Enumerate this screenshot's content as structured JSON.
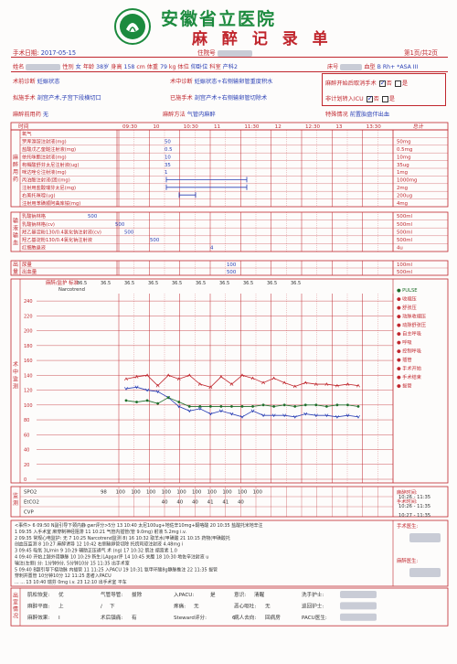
{
  "header": {
    "hospital": "安徽省立医院",
    "title": "麻 醉 记 录 单",
    "logo_text": "安徽省立医院",
    "logo_year": "1898",
    "surgery_date_label": "手术日期:",
    "surgery_date": "2017-05-15",
    "admission_label": "住院号",
    "page_info": "第1页/共2页"
  },
  "patient": {
    "name_label": "姓名",
    "sex_label": "性别",
    "sex": "女",
    "age_label": "年龄",
    "age": "38岁",
    "height_label": "身高",
    "height": "158",
    "height_unit": "cm",
    "weight_label": "体重",
    "weight": "79",
    "weight_unit": "kg",
    "position_label": "体位",
    "position": "仰卧位",
    "dept_label": "科室",
    "dept": "产科2",
    "bed_label": "床号",
    "blood_label": "血型",
    "blood": "B Rh+ *ASA III",
    "preop_dx_label": "术前诊断",
    "preop_dx": "妊娠状态",
    "intraop_dx_label": "术中诊断",
    "intraop_dx": "妊娠状态+右侧输卵管重度积水",
    "planned_op_label": "拟施手术",
    "planned_op": "剖宫产术,子宫下段横切口",
    "done_op_label": "已施手术",
    "done_op": "剖宫产术+右侧输卵管切除术",
    "premed_label": "麻醉前用药",
    "premed": "无",
    "method_label": "麻醉方法",
    "method": "气管内麻醉",
    "cancel_label": "麻醉开始后取消手术",
    "no_label": "否",
    "yes_label": "是",
    "icu_label": "非计划转入ICU",
    "special_label": "特殊情况",
    "special": "前置胎盘伴出血"
  },
  "timeline": {
    "label": "时间",
    "ticks": [
      "09:30",
      "10",
      "10:30",
      "11",
      "11:30",
      "12",
      "12:30",
      "13",
      "13:30"
    ],
    "total_label": "总计"
  },
  "drugs": {
    "side_label": "麻醉用药",
    "rows": [
      {
        "name": "氧气",
        "val": "",
        "total": ""
      },
      {
        "name": "罗库溴铵注射液(mg)",
        "val": "50",
        "total": "50mg"
      },
      {
        "name": "盐酸戊乙奎醚注射液(mg)",
        "val": "0.5",
        "total": "0.5mg"
      },
      {
        "name": "依托咪酯注射液(mg)",
        "val": "10",
        "total": "10mg"
      },
      {
        "name": "枸橼酸舒芬太尼注射液(ug)",
        "val": "35",
        "total": "35ug"
      },
      {
        "name": "咪达唑仑注射液(mg)",
        "val": "1",
        "total": "1mg"
      },
      {
        "name": "丙泊酚注射液(团)(mg)",
        "val": "",
        "total": "1000mg"
      },
      {
        "name": "注射用盐酸瑞芬太尼(mg)",
        "val": "",
        "total": "2mg"
      },
      {
        "name": "右美托咪啶(ug)",
        "val": "",
        "total": "200ug"
      },
      {
        "name": "注射用苯磺顺阿曲库铵(mg)",
        "val": "",
        "total": "4mg"
      }
    ]
  },
  "fluids": {
    "side_label": "输液输血",
    "rows": [
      {
        "name": "乳酸钠林格",
        "val": "500",
        "total": "500ml"
      },
      {
        "name": "乳酸钠林格(cv)",
        "val": "500",
        "total": "500ml"
      },
      {
        "name": "羟乙基淀粉130/0.4氯化钠注射液(cv)",
        "val": "500",
        "total": "500ml"
      },
      {
        "name": "羟乙基淀粉130/0.4氯化钠注射液",
        "val": "500",
        "total": "500ml"
      },
      {
        "name": "红细胞悬液",
        "val": "4",
        "total": "4u"
      }
    ]
  },
  "output": {
    "side_label": "出量",
    "rows": [
      {
        "name": "尿量",
        "val": "100",
        "total": "100ml"
      },
      {
        "name": "出血量",
        "val": "500",
        "total": "500ml"
      }
    ]
  },
  "vitals": {
    "side_label": "术中监测",
    "header": "麻醉/监护 标准",
    "narcotrend": "Narcotrend",
    "temps": [
      "36.5",
      "36.5",
      "36.5",
      "36.5",
      "36.5",
      "36.5",
      "36.5",
      "36.5",
      "36.5",
      "36.5"
    ],
    "y_ticks": [
      "240",
      "220",
      "200",
      "180",
      "160",
      "140",
      "120",
      "100",
      "80",
      "60",
      "40",
      "20",
      "0"
    ],
    "legend": [
      "PULSE",
      "收缩压",
      "舒张压",
      "动脉收缩压",
      "动脉舒张压",
      "自主呼吸",
      "呼吸",
      "控制呼吸",
      "插管",
      "手术开始",
      "手术结束",
      "拔管"
    ],
    "legend_colors": [
      "#1e6e2a",
      "#c0262d",
      "#c0262d",
      "#c0262d",
      "#c0262d",
      "#c0262d",
      "#c0262d",
      "#c0262d",
      "#c0262d",
      "#c0262d",
      "#c0262d",
      "#c0262d"
    ]
  },
  "chart_data": {
    "type": "line",
    "title": "",
    "xlabel": "时间",
    "ylabel": "",
    "ylim": [
      0,
      250
    ],
    "x": [
      "09:30",
      "09:40",
      "09:50",
      "10:00",
      "10:10",
      "10:20",
      "10:30",
      "10:40",
      "10:50",
      "11:00",
      "11:10",
      "11:20",
      "11:30",
      "11:40",
      "11:50",
      "12:00",
      "12:10",
      "12:20",
      "12:30",
      "12:40",
      "12:50",
      "13:00",
      "13:10"
    ],
    "series": [
      {
        "name": "收缩压",
        "color": "#c0262d",
        "values": [
          135,
          138,
          140,
          126,
          140,
          135,
          140,
          128,
          124,
          138,
          128,
          140,
          136,
          130,
          136,
          130,
          125,
          130,
          128,
          128,
          126,
          128,
          126
        ]
      },
      {
        "name": "舒张压",
        "color": "#2a3fb5",
        "values": [
          122,
          124,
          120,
          118,
          110,
          98,
          92,
          95,
          88,
          92,
          88,
          84,
          92,
          86,
          86,
          86,
          84,
          88,
          86,
          86,
          84,
          86,
          84
        ]
      },
      {
        "name": "PULSE",
        "color": "#1e6e2a",
        "values": [
          106,
          104,
          106,
          102,
          110,
          104,
          98,
          98,
          98,
          98,
          98,
          98,
          98,
          100,
          98,
          100,
          98,
          100,
          100,
          98,
          100,
          100,
          98
        ]
      }
    ]
  },
  "monitor": {
    "side_label": "监测",
    "rows": [
      {
        "name": "SPO2",
        "vals": [
          "98",
          "100",
          "100",
          "100",
          "100",
          "100",
          "100",
          "100",
          "100",
          "100",
          "100"
        ]
      },
      {
        "name": "EtCO2",
        "vals": [
          "",
          "",
          "",
          "",
          "40",
          "40",
          "40",
          "41",
          "41",
          "40",
          ""
        ]
      },
      {
        "name": "CVP",
        "vals": []
      }
    ],
    "times_label": "麻醉时间:",
    "times": [
      "10:26 - 11:35",
      "10:26 - 11:35",
      "10:27 - 11:35"
    ],
    "times_labels": [
      "麻醉时间:",
      "手术时间:",
      ""
    ]
  },
  "events": {
    "side_label": "事件",
    "lines": [
      "<事件>   6 09:50 N副引导下颈内静  gwr评分>5分  13 10:40  太尼100ug+地佐辛10mg+酮咯酸 20 10:35  盐酸托米地辛注",
      "1 09:35 入手术室     麻穿制神经阻滞   11 10:21  气管内插管(管  9.0mg)       射液 5.2mg i.v.",
      "2 09:35 常规心电监护: 无  7 10:25 Narcotrend监测   8)    16 10:32 取羊水(甲磺酸  21 10:15 药物(甲磺酸托",
      "创血压监测       8 10:27 麻醉诱导   12 10:42 右侧输卵管切除  托烷司琼注射液 4.48mg i",
      "3 09:45 吸氧 3L/min  9 10:29 辅助正压通气   术 (ng) 17 10:32 肌注 缩宫素 1.0",
      "4 09:40 开始上肢外周静脉  10 10:29 新生儿Apgar评  14 10:45 关腹  18 10:30 地佐辛注射液 u",
      "  输注(左侧)   分: 1分钟9分, 5分钟10分  15 11:35 出手术室",
      "5 09:40 B超引导下桡动脉  内插管   11 11:25 入PACU  19 10:31 氨甲环酸8g静脉推注 22 11:35 拔管",
      "  穿刺并置管   10分钟10分   12 11:25 患者入PACU",
      "  ...         ...    13 10:40 瑞芬  0mg i.v.   23 12:10 出手术室 平车"
    ]
  },
  "pacu": {
    "side_label": "出室情况",
    "rows": [
      [
        {
          "k": "肌松恢复:",
          "v": "优"
        },
        {
          "k": "气管导管:",
          "v": "拔除"
        },
        {
          "k": "入PACU:",
          "v": "是"
        },
        {
          "k": "意识:",
          "v": "清醒"
        }
      ],
      [
        {
          "k": "麻醉平面:",
          "v": "上"
        },
        {
          "k": "/",
          "v": "下"
        },
        {
          "k": "疼痛:",
          "v": "无"
        },
        {
          "k": "恶心呕吐:",
          "v": "无"
        }
      ],
      [
        {
          "k": "麻醉效果:",
          "v": "I"
        },
        {
          "k": "术后镇痛:",
          "v": "有"
        },
        {
          "k": "Steward评分:",
          "v": "6"
        },
        {
          "k": "病人去向:",
          "v": "回病房"
        }
      ]
    ],
    "hand_nurse": "洗手护士:",
    "circ_nurse": "巡回护士:",
    "pacu_nurse": "PACU医生:",
    "surgeon": "手术医生:",
    "anesth": "麻醉医生:"
  }
}
